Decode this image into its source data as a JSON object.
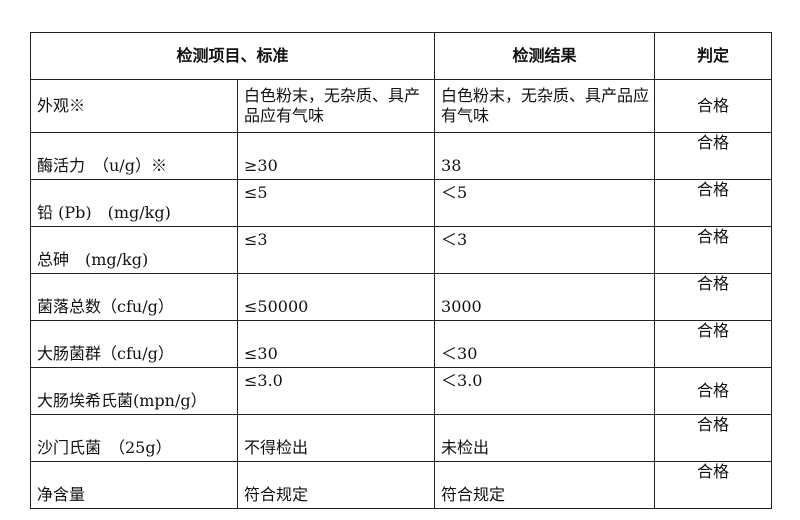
{
  "headers": [
    "检测项目、标准",
    "检测结果",
    "判定"
  ],
  "rows": [
    {
      "item": "外观※",
      "standard": "白色粉末，无杂质、具产品应有气味",
      "result": "白色粉末，无杂质、具产品应有气味",
      "verdict": "合格"
    },
    {
      "item": "酶活力　（u/g）※",
      "standard": "≥30",
      "result": "38",
      "verdict": "合格"
    },
    {
      "item": "铅 (Pb)　(mg/kg)",
      "standard": "≤5",
      "result": "＜5",
      "verdict": "合格"
    },
    {
      "item": "总砷　(mg/kg)",
      "standard": "≤3",
      "result": "＜3",
      "verdict": "合格"
    },
    {
      "item": "菌落总数（cfu/g）",
      "standard": "≤50000",
      "result": "3000",
      "verdict": "合格"
    },
    {
      "item": "大肠菌群（cfu/g）",
      "standard": "≤30",
      "result": "＜30",
      "verdict": "合格"
    },
    {
      "item": "大肠埃希氏菌(mpn/g）",
      "standard": "≤3.0",
      "result": "＜3.0",
      "verdict": "合格"
    },
    {
      "item": "沙门氏菌　（25g）",
      "standard": "不得检出",
      "result": "未检出",
      "verdict": "合格"
    },
    {
      "item": "净含量",
      "standard": "符合规定",
      "result": "符合规定",
      "verdict": "合格"
    }
  ]
}
